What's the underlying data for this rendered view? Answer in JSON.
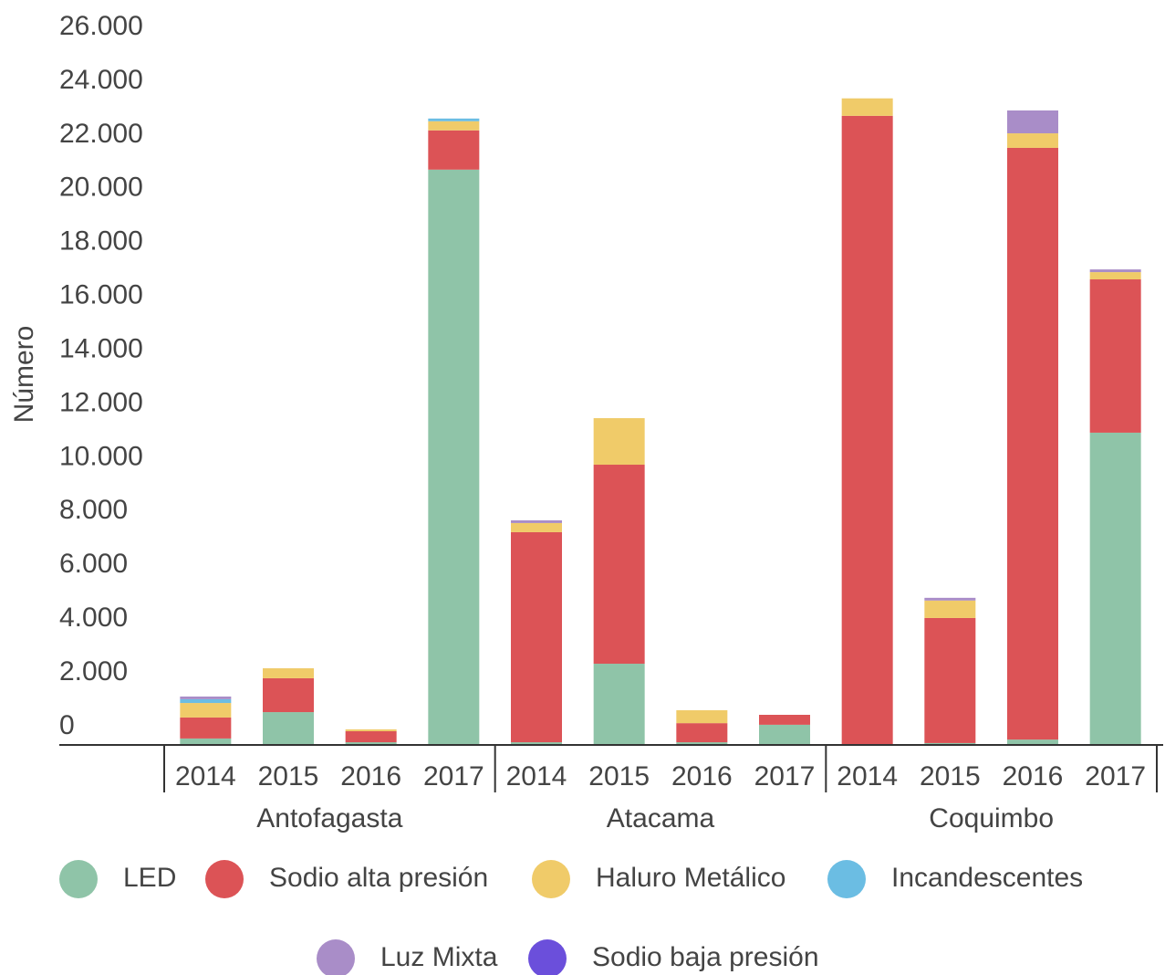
{
  "chart_data": {
    "type": "stacked_bar",
    "y_label": "Número",
    "groups": [
      "Antofagasta",
      "Atacama",
      "Coquimbo"
    ],
    "categories": [
      "2014",
      "2015",
      "2016",
      "2017",
      "2014",
      "2015",
      "2016",
      "2017",
      "2014",
      "2015",
      "2016",
      "2017"
    ],
    "ylim": [
      0,
      26000
    ],
    "yticks": [
      0,
      {
        "value": 2000,
        "label": "2.000"
      },
      {
        "value": 4000,
        "label": "4.000"
      },
      {
        "value": 6000,
        "label": "6.000"
      },
      {
        "value": 8000,
        "label": "8.000"
      },
      {
        "value": 10000,
        "label": "10.000"
      },
      {
        "value": 12000,
        "label": "12.000"
      },
      {
        "value": 14000,
        "label": "14.000"
      },
      {
        "value": 16000,
        "label": "16.000"
      },
      {
        "value": 18000,
        "label": "18.000"
      },
      {
        "value": 20000,
        "label": "20.000"
      },
      {
        "value": 22000,
        "label": "22.000"
      },
      {
        "value": 24000,
        "label": "24.000"
      },
      {
        "value": 26000,
        "label": "26.000"
      }
    ],
    "grid": false,
    "legend": "bottom",
    "series": [
      {
        "name": "LED",
        "color": "#8fc4a8",
        "values": [
          240,
          1220,
          100,
          21390,
          100,
          3020,
          100,
          750,
          0,
          70,
          200,
          11610
        ]
      },
      {
        "name": "Sodio alta presión",
        "color": "#dc5356",
        "values": [
          780,
          1260,
          410,
          1460,
          7810,
          7400,
          710,
          370,
          23390,
          4650,
          22000,
          5700
        ]
      },
      {
        "name": "Haluro Metálico",
        "color": "#f0cb69",
        "values": [
          540,
          370,
          70,
          340,
          340,
          1730,
          480,
          0,
          650,
          650,
          540,
          270
        ]
      },
      {
        "name": "Incandescentes",
        "color": "#6bbde3",
        "values": [
          140,
          0,
          0,
          100,
          0,
          0,
          0,
          0,
          0,
          0,
          0,
          0
        ]
      },
      {
        "name": "Luz Mixta",
        "color": "#a98dc8",
        "values": [
          100,
          0,
          0,
          0,
          100,
          0,
          0,
          0,
          0,
          100,
          850,
          100
        ]
      },
      {
        "name": "Sodio baja presión",
        "color": "#6b4fdb",
        "values": [
          0,
          0,
          0,
          0,
          0,
          0,
          0,
          0,
          0,
          0,
          0,
          0
        ]
      }
    ]
  }
}
